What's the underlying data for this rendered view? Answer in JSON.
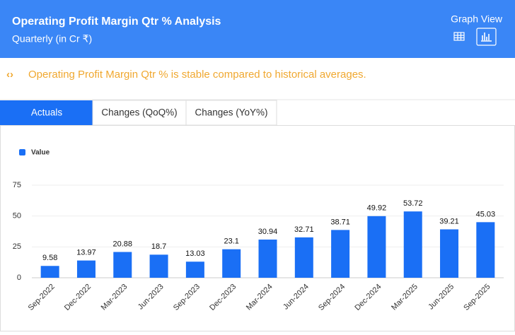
{
  "header": {
    "title": "Operating Profit Margin Qtr % Analysis",
    "subtitle": "Quarterly (in Cr ₹)",
    "view_label": "Graph View"
  },
  "insight": "Operating Profit Margin Qtr % is stable compared to historical averages.",
  "tabs": [
    "Actuals",
    "Changes (QoQ%)",
    "Changes (YoY%)"
  ],
  "chart_data": {
    "type": "bar",
    "categories": [
      "Sep-2022",
      "Dec-2022",
      "Mar-2023",
      "Jun-2023",
      "Sep-2023",
      "Dec-2023",
      "Mar-2024",
      "Jun-2024",
      "Sep-2024",
      "Dec-2024",
      "Mar-2025",
      "Jun-2025",
      "Sep-2025"
    ],
    "series": [
      {
        "name": "Value",
        "color": "#1a6ff5",
        "values": [
          9.58,
          13.97,
          20.88,
          18.7,
          13.03,
          23.1,
          30.94,
          32.71,
          38.71,
          49.92,
          53.72,
          39.21,
          45.03
        ]
      }
    ],
    "ylim": [
      0,
      75
    ],
    "yticks": [
      0,
      25,
      50,
      75
    ],
    "grid": true,
    "legend": "top-left"
  }
}
